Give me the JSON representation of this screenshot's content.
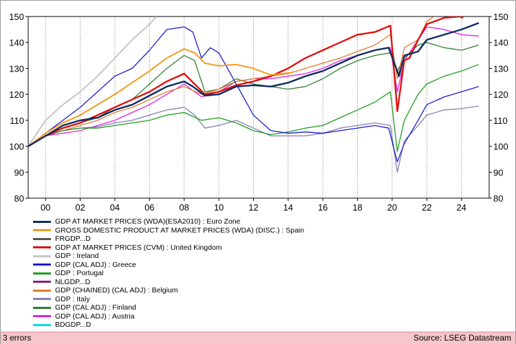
{
  "chart_data": {
    "type": "line",
    "title": "",
    "xlabel": "",
    "ylabel": "",
    "ylim": [
      80,
      150
    ],
    "xlim": [
      1999.0,
      2025.6
    ],
    "yticks": [
      80,
      90,
      100,
      110,
      120,
      130,
      140,
      150
    ],
    "xtick_labels": [
      {
        "x": 2000,
        "label": "00"
      },
      {
        "x": 2002,
        "label": "02"
      },
      {
        "x": 2004,
        "label": "04"
      },
      {
        "x": 2006,
        "label": "06"
      },
      {
        "x": 2008,
        "label": "08"
      },
      {
        "x": 2010,
        "label": "10"
      },
      {
        "x": 2012,
        "label": "12"
      },
      {
        "x": 2014,
        "label": "14"
      },
      {
        "x": 2016,
        "label": "16"
      },
      {
        "x": 2018,
        "label": "18"
      },
      {
        "x": 2020,
        "label": "20"
      },
      {
        "x": 2022,
        "label": "22"
      },
      {
        "x": 2024,
        "label": "24"
      }
    ],
    "grid": "vertical-dotted",
    "legend_position": "bottom-left",
    "series": [
      {
        "name": "GDP AT MARKET PRICES (WDA)(ESA2010) : Euro Zone",
        "color": "#0b2a63",
        "width": 2.4,
        "points": [
          [
            1999.0,
            100
          ],
          [
            2000.0,
            104
          ],
          [
            2001.0,
            108
          ],
          [
            2002.0,
            110
          ],
          [
            2003.0,
            111
          ],
          [
            2004.0,
            114
          ],
          [
            2005.0,
            116
          ],
          [
            2006.0,
            119.5
          ],
          [
            2007.0,
            123
          ],
          [
            2008.0,
            125
          ],
          [
            2008.5,
            123
          ],
          [
            2009.2,
            119.5
          ],
          [
            2010.0,
            120
          ],
          [
            2011.0,
            123
          ],
          [
            2012.0,
            123.5
          ],
          [
            2013.0,
            123
          ],
          [
            2014.0,
            124.5
          ],
          [
            2015.0,
            127
          ],
          [
            2016.0,
            129
          ],
          [
            2017.0,
            132
          ],
          [
            2018.0,
            135
          ],
          [
            2019.0,
            137
          ],
          [
            2019.8,
            138
          ],
          [
            2020.4,
            127
          ],
          [
            2020.7,
            135
          ],
          [
            2021.5,
            136.5
          ],
          [
            2022.0,
            141
          ],
          [
            2023.0,
            143
          ],
          [
            2024.0,
            145
          ],
          [
            2025.0,
            147.5
          ]
        ]
      },
      {
        "name": "GROSS DOMESTIC PRODUCT AT MARKET PRICES (WDA) (DISC.) : Spain",
        "color": "#f39c1c",
        "width": 2,
        "points": [
          [
            1999.0,
            100
          ],
          [
            2000.0,
            105
          ],
          [
            2001.0,
            109
          ],
          [
            2002.0,
            112
          ],
          [
            2003.0,
            116
          ],
          [
            2004.0,
            120
          ],
          [
            2005.0,
            124.5
          ],
          [
            2006.0,
            129
          ],
          [
            2007.0,
            134
          ],
          [
            2008.0,
            137.5
          ],
          [
            2008.6,
            136
          ],
          [
            2009.2,
            132
          ],
          [
            2010.0,
            131
          ],
          [
            2011.0,
            131.5
          ],
          [
            2012.0,
            130
          ],
          [
            2013.0,
            127.5
          ],
          [
            2014.3,
            128.5
          ]
        ]
      },
      {
        "name": "FRGDP...D",
        "color": "#555555",
        "width": 1.2,
        "points": []
      },
      {
        "name": "GDP AT MARKET PRICES (CVM) : United Kingdom",
        "color": "#e01010",
        "width": 2.4,
        "points": [
          [
            1999.0,
            100
          ],
          [
            2000.0,
            104
          ],
          [
            2001.0,
            107
          ],
          [
            2002.0,
            109
          ],
          [
            2003.0,
            112
          ],
          [
            2004.0,
            115
          ],
          [
            2005.0,
            118
          ],
          [
            2006.0,
            121
          ],
          [
            2007.0,
            125
          ],
          [
            2008.0,
            128
          ],
          [
            2008.6,
            124
          ],
          [
            2009.2,
            120
          ],
          [
            2010.0,
            121
          ],
          [
            2011.0,
            123.5
          ],
          [
            2012.0,
            125
          ],
          [
            2013.0,
            127
          ],
          [
            2014.0,
            130
          ],
          [
            2015.0,
            134
          ],
          [
            2016.0,
            137
          ],
          [
            2017.0,
            140
          ],
          [
            2018.0,
            143
          ],
          [
            2019.0,
            144
          ],
          [
            2019.9,
            146.5
          ],
          [
            2020.3,
            113.5
          ],
          [
            2020.7,
            133
          ],
          [
            2021.0,
            134
          ],
          [
            2021.5,
            141
          ],
          [
            2022.0,
            147
          ],
          [
            2023.0,
            149.5
          ],
          [
            2023.9,
            150
          ],
          [
            2024.1,
            149.5
          ]
        ]
      },
      {
        "name": "GDP : Ireland",
        "color": "#c6c6c6",
        "width": 2,
        "points": [
          [
            1999.0,
            100
          ],
          [
            2000.0,
            110
          ],
          [
            2001.0,
            116
          ],
          [
            2002.0,
            121
          ],
          [
            2003.0,
            127
          ],
          [
            2004.0,
            134
          ],
          [
            2005.0,
            141
          ],
          [
            2006.0,
            147
          ],
          [
            2006.4,
            150
          ]
        ]
      },
      {
        "name": "GDP (CAL ADJ) : Greece",
        "color": "#1a1ad0",
        "width": 1.3,
        "points": [
          [
            1999.0,
            100
          ],
          [
            2000.0,
            105
          ],
          [
            2001.0,
            110
          ],
          [
            2002.0,
            115
          ],
          [
            2003.0,
            121
          ],
          [
            2004.0,
            127
          ],
          [
            2005.0,
            130
          ],
          [
            2006.0,
            137
          ],
          [
            2007.0,
            145
          ],
          [
            2008.0,
            146
          ],
          [
            2008.5,
            144
          ],
          [
            2009.0,
            134
          ],
          [
            2009.5,
            138
          ],
          [
            2010.0,
            136
          ],
          [
            2011.0,
            124
          ],
          [
            2012.0,
            112
          ],
          [
            2013.0,
            106
          ],
          [
            2014.0,
            105
          ],
          [
            2015.0,
            105.5
          ],
          [
            2016.0,
            105
          ],
          [
            2017.0,
            106
          ],
          [
            2018.0,
            107
          ],
          [
            2019.0,
            108
          ],
          [
            2019.8,
            107
          ],
          [
            2020.3,
            94
          ],
          [
            2020.7,
            101
          ],
          [
            2021.5,
            110
          ],
          [
            2022.0,
            116
          ],
          [
            2023.0,
            119
          ],
          [
            2024.0,
            121
          ],
          [
            2025.0,
            123
          ]
        ]
      },
      {
        "name": "GDP : Portugal",
        "color": "#1f9c1f",
        "width": 1.3,
        "points": [
          [
            1999.0,
            100
          ],
          [
            2000.0,
            104
          ],
          [
            2001.0,
            106
          ],
          [
            2002.0,
            107
          ],
          [
            2003.0,
            107
          ],
          [
            2004.0,
            108
          ],
          [
            2005.0,
            109
          ],
          [
            2006.0,
            110
          ],
          [
            2007.0,
            112
          ],
          [
            2008.0,
            113
          ],
          [
            2009.0,
            110
          ],
          [
            2010.0,
            111
          ],
          [
            2011.0,
            109
          ],
          [
            2012.0,
            106
          ],
          [
            2013.0,
            104.5
          ],
          [
            2014.0,
            105.5
          ],
          [
            2015.0,
            107
          ],
          [
            2016.0,
            108
          ],
          [
            2017.0,
            111
          ],
          [
            2018.0,
            114
          ],
          [
            2019.0,
            117
          ],
          [
            2019.9,
            121
          ],
          [
            2020.3,
            98
          ],
          [
            2020.7,
            110
          ],
          [
            2021.5,
            120
          ],
          [
            2022.0,
            124
          ],
          [
            2023.0,
            127
          ],
          [
            2024.0,
            129
          ],
          [
            2025.0,
            131.5
          ]
        ]
      },
      {
        "name": "NLGDP...D",
        "color": "#8b1a8b",
        "width": 1.2,
        "points": []
      },
      {
        "name": "GDP (CHAINED) (CAL ADJ) : Belgium",
        "color": "#e07a2a",
        "width": 1.3,
        "points": [
          [
            1999.0,
            100
          ],
          [
            2000.0,
            104
          ],
          [
            2001.0,
            106
          ],
          [
            2002.0,
            108
          ],
          [
            2003.0,
            110
          ],
          [
            2004.0,
            113
          ],
          [
            2005.0,
            115
          ],
          [
            2006.0,
            118
          ],
          [
            2007.0,
            121
          ],
          [
            2008.0,
            123
          ],
          [
            2009.0,
            120
          ],
          [
            2010.0,
            122
          ],
          [
            2011.0,
            125
          ],
          [
            2012.0,
            126
          ],
          [
            2013.0,
            127
          ],
          [
            2014.0,
            128
          ],
          [
            2015.0,
            130
          ],
          [
            2016.0,
            132
          ],
          [
            2017.0,
            134
          ],
          [
            2018.0,
            136.5
          ],
          [
            2019.0,
            139
          ],
          [
            2019.9,
            143
          ],
          [
            2020.3,
            126
          ],
          [
            2020.7,
            138
          ],
          [
            2021.5,
            141
          ],
          [
            2022.0,
            148
          ],
          [
            2022.4,
            150
          ]
        ]
      },
      {
        "name": "GDP : Italy",
        "color": "#8080b0",
        "width": 1.3,
        "points": [
          [
            1999.0,
            100
          ],
          [
            2000.0,
            104
          ],
          [
            2001.0,
            106
          ],
          [
            2002.0,
            107
          ],
          [
            2003.0,
            107.5
          ],
          [
            2004.0,
            109
          ],
          [
            2005.0,
            110
          ],
          [
            2006.0,
            112
          ],
          [
            2007.0,
            114
          ],
          [
            2008.0,
            115
          ],
          [
            2008.6,
            112
          ],
          [
            2009.2,
            107
          ],
          [
            2010.0,
            108
          ],
          [
            2011.0,
            110
          ],
          [
            2012.0,
            107
          ],
          [
            2013.0,
            104
          ],
          [
            2014.0,
            104
          ],
          [
            2015.0,
            104
          ],
          [
            2016.0,
            105
          ],
          [
            2017.0,
            107
          ],
          [
            2018.0,
            108
          ],
          [
            2019.0,
            109
          ],
          [
            2019.9,
            108
          ],
          [
            2020.3,
            90
          ],
          [
            2020.7,
            102
          ],
          [
            2021.5,
            108
          ],
          [
            2022.0,
            112
          ],
          [
            2023.0,
            114
          ],
          [
            2024.0,
            114.5
          ],
          [
            2025.0,
            115.5
          ]
        ]
      },
      {
        "name": "GDP (CAL ADJ) : Finland",
        "color": "#2e7d2e",
        "width": 1.3,
        "points": [
          [
            1999.0,
            100
          ],
          [
            2000.0,
            104
          ],
          [
            2001.0,
            107
          ],
          [
            2002.0,
            109
          ],
          [
            2003.0,
            111
          ],
          [
            2004.0,
            115
          ],
          [
            2005.0,
            118
          ],
          [
            2006.0,
            124
          ],
          [
            2007.0,
            130
          ],
          [
            2008.0,
            135
          ],
          [
            2008.6,
            133
          ],
          [
            2009.2,
            121
          ],
          [
            2010.0,
            122
          ],
          [
            2011.0,
            126
          ],
          [
            2012.0,
            124
          ],
          [
            2013.0,
            123
          ],
          [
            2014.0,
            122
          ],
          [
            2015.0,
            123
          ],
          [
            2016.0,
            126
          ],
          [
            2017.0,
            130
          ],
          [
            2018.0,
            133
          ],
          [
            2019.0,
            135
          ],
          [
            2019.9,
            136
          ],
          [
            2020.3,
            129
          ],
          [
            2020.7,
            134
          ],
          [
            2021.5,
            139
          ],
          [
            2022.0,
            140
          ],
          [
            2023.0,
            138
          ],
          [
            2024.0,
            137
          ],
          [
            2025.0,
            139
          ]
        ]
      },
      {
        "name": "GDP (CAL ADJ) : Austria",
        "color": "#e020e0",
        "width": 1.3,
        "points": [
          [
            1999.0,
            100
          ],
          [
            2000.0,
            104
          ],
          [
            2001.0,
            105
          ],
          [
            2002.0,
            106
          ],
          [
            2003.0,
            108
          ],
          [
            2004.0,
            110
          ],
          [
            2005.0,
            113
          ],
          [
            2006.0,
            116
          ],
          [
            2007.0,
            120
          ],
          [
            2008.0,
            124
          ],
          [
            2009.0,
            119
          ],
          [
            2010.0,
            121
          ],
          [
            2011.0,
            125
          ],
          [
            2012.0,
            126
          ],
          [
            2013.0,
            126
          ],
          [
            2014.0,
            127
          ],
          [
            2015.0,
            128
          ],
          [
            2016.0,
            130
          ],
          [
            2017.0,
            133
          ],
          [
            2018.0,
            135
          ],
          [
            2019.0,
            137
          ],
          [
            2019.9,
            138
          ],
          [
            2020.3,
            121
          ],
          [
            2020.7,
            133
          ],
          [
            2021.5,
            141
          ],
          [
            2022.0,
            146
          ],
          [
            2023.0,
            145
          ],
          [
            2024.0,
            143
          ],
          [
            2025.0,
            142.5
          ]
        ]
      },
      {
        "name": "BDGDP...D",
        "color": "#00e0e0",
        "width": 1.2,
        "points": []
      }
    ]
  },
  "footer": {
    "errors": "3 errors",
    "source": "Source: LSEG Datastream"
  }
}
